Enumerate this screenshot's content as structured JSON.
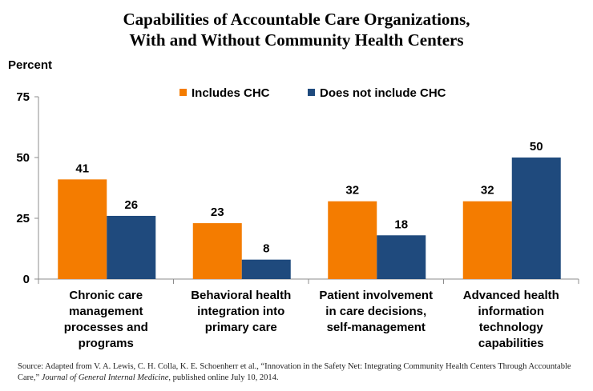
{
  "title_line1": "Capabilities of Accountable Care Organizations,",
  "title_line2": "With and Without Community Health Centers",
  "source": {
    "prefix": "Source: Adapted from V. A. Lewis, C. H. Colla, K. E. Schoenherr et al., “Innovation in the Safety Net: Integrating Community Health Centers Through Accountable Care,” ",
    "journal": "Journal of General Internal Medicine",
    "suffix": ", published online July 10, 2014."
  },
  "chart_data": {
    "type": "bar",
    "title": "Capabilities of Accountable Care Organizations, With and Without Community Health Centers",
    "ylabel": "Percent",
    "xlabel": "",
    "ylim": [
      0,
      75
    ],
    "yticks": [
      0,
      25,
      50,
      75
    ],
    "legend_position": "top",
    "categories": [
      [
        "Chronic care",
        "management",
        "processes and",
        "programs"
      ],
      [
        "Behavioral health",
        "integration into",
        "primary care"
      ],
      [
        "Patient involvement",
        "in care decisions,",
        "self-management"
      ],
      [
        "Advanced health",
        "information",
        "technology",
        "capabilities"
      ]
    ],
    "series": [
      {
        "name": "Includes CHC",
        "color": "#F47C00",
        "values": [
          41,
          23,
          32,
          32
        ]
      },
      {
        "name": "Does not include CHC",
        "color": "#1F4A7D",
        "values": [
          26,
          8,
          18,
          50
        ]
      }
    ]
  }
}
